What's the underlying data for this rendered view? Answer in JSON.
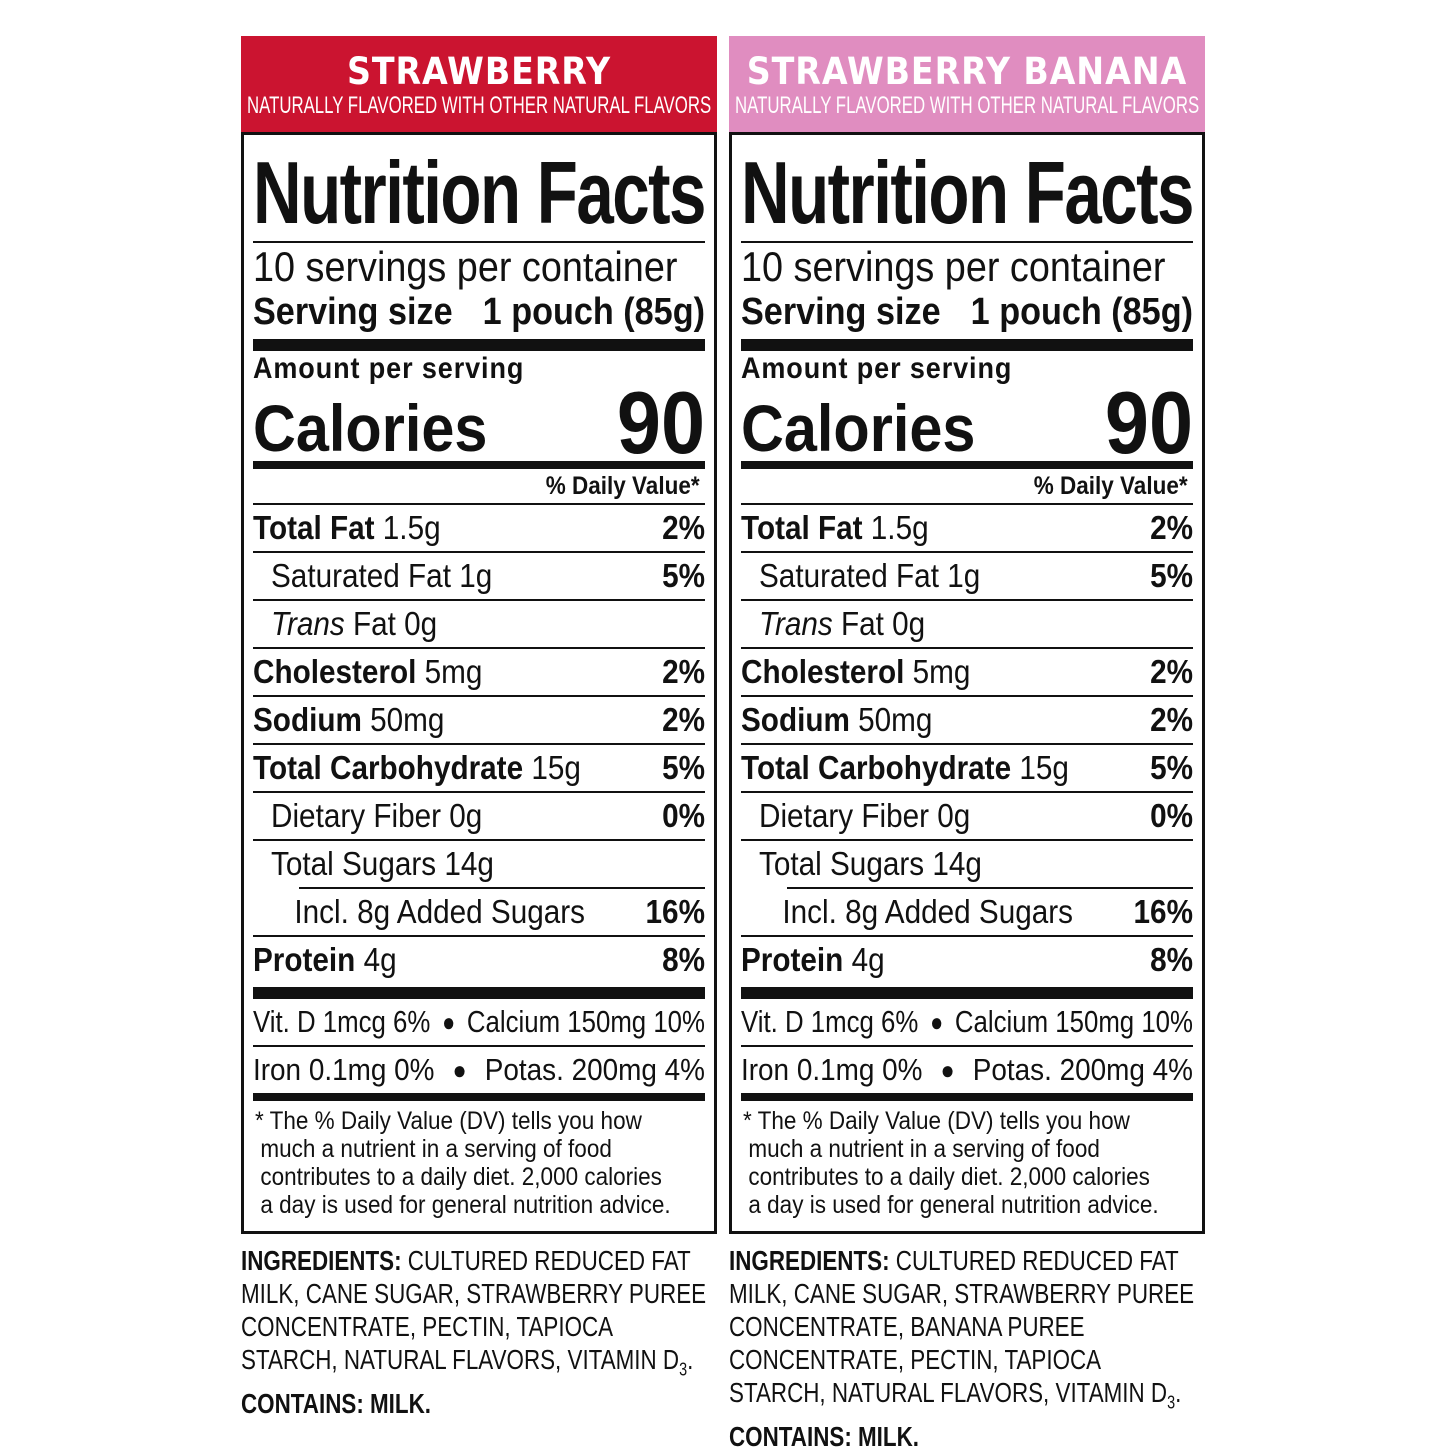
{
  "colors": {
    "strawberry": "#cb1430",
    "strawberry_banana": "#e08dc0"
  },
  "panels": [
    {
      "flavor": "STRAWBERRY",
      "subtitle": "NATURALLY FLAVORED WITH OTHER NATURAL FLAVORS",
      "color_key": "strawberry",
      "title": "Nutrition Facts",
      "servings": "10 servings per container",
      "serving_size_label": "Serving size",
      "serving_size_value": "1 pouch (85g)",
      "amount_per_serving": "Amount per serving",
      "calories_label": "Calories",
      "calories_value": "90",
      "dv_header": "% Daily Value*",
      "rows": [
        {
          "name": "Total Fat",
          "amount": " 1.5g",
          "dv": "2%",
          "bold": true,
          "indent": 0
        },
        {
          "name": "Saturated Fat 1g",
          "amount": "",
          "dv": "5%",
          "bold": false,
          "indent": 1
        },
        {
          "italic": "Trans",
          "name": " Fat 0g",
          "amount": "",
          "dv": "",
          "bold": false,
          "indent": 1
        },
        {
          "name": "Cholesterol",
          "amount": " 5mg",
          "dv": "2%",
          "bold": true,
          "indent": 0
        },
        {
          "name": "Sodium",
          "amount": " 50mg",
          "dv": "2%",
          "bold": true,
          "indent": 0
        },
        {
          "name": "Total Carbohydrate",
          "amount": " 15g",
          "dv": "5%",
          "bold": true,
          "indent": 0
        },
        {
          "name": "Dietary Fiber 0g",
          "amount": "",
          "dv": "0%",
          "bold": false,
          "indent": 1
        },
        {
          "name": "Total Sugars 14g",
          "amount": "",
          "dv": "",
          "bold": false,
          "indent": 1
        },
        {
          "name": "Incl. 8g Added Sugars",
          "amount": "",
          "dv": "16%",
          "bold": false,
          "indent": 2
        },
        {
          "name": "Protein",
          "amount": " 4g",
          "dv": "8%",
          "bold": true,
          "indent": 0
        }
      ],
      "vitamins": [
        {
          "left": "Vit. D 1mcg 6%",
          "right": "Calcium 150mg 10%"
        },
        {
          "left": "Iron 0.1mg 0%",
          "right": "Potas. 200mg 4%"
        }
      ],
      "footnote": [
        "* The % Daily Value (DV) tells you how",
        "much a nutrient in a serving of food",
        "contributes to a daily diet. 2,000 calories",
        "a day is used for general nutrition advice."
      ],
      "ingredients_label": "INGREDIENTS:",
      "ingredients_text": " CULTURED REDUCED FAT MILK, CANE SUGAR, STRAWBERRY PUREE CONCENTRATE, PECTIN, TAPIOCA STARCH, NATURAL FLAVORS, VITAMIN D",
      "ingredients_sub": "3",
      "ingredients_end": ".",
      "contains": "CONTAINS: MILK."
    },
    {
      "flavor": "STRAWBERRY BANANA",
      "subtitle": "NATURALLY FLAVORED WITH OTHER NATURAL FLAVORS",
      "color_key": "strawberry_banana",
      "title": "Nutrition Facts",
      "servings": "10 servings per container",
      "serving_size_label": "Serving size",
      "serving_size_value": "1 pouch (85g)",
      "amount_per_serving": "Amount per serving",
      "calories_label": "Calories",
      "calories_value": "90",
      "dv_header": "% Daily Value*",
      "rows": [
        {
          "name": "Total Fat",
          "amount": " 1.5g",
          "dv": "2%",
          "bold": true,
          "indent": 0
        },
        {
          "name": "Saturated Fat 1g",
          "amount": "",
          "dv": "5%",
          "bold": false,
          "indent": 1
        },
        {
          "italic": "Trans",
          "name": " Fat 0g",
          "amount": "",
          "dv": "",
          "bold": false,
          "indent": 1
        },
        {
          "name": "Cholesterol",
          "amount": " 5mg",
          "dv": "2%",
          "bold": true,
          "indent": 0
        },
        {
          "name": "Sodium",
          "amount": " 50mg",
          "dv": "2%",
          "bold": true,
          "indent": 0
        },
        {
          "name": "Total Carbohydrate",
          "amount": " 15g",
          "dv": "5%",
          "bold": true,
          "indent": 0
        },
        {
          "name": "Dietary Fiber 0g",
          "amount": "",
          "dv": "0%",
          "bold": false,
          "indent": 1
        },
        {
          "name": "Total Sugars 14g",
          "amount": "",
          "dv": "",
          "bold": false,
          "indent": 1
        },
        {
          "name": "Incl. 8g Added Sugars",
          "amount": "",
          "dv": "16%",
          "bold": false,
          "indent": 2
        },
        {
          "name": "Protein",
          "amount": " 4g",
          "dv": "8%",
          "bold": true,
          "indent": 0
        }
      ],
      "vitamins": [
        {
          "left": "Vit. D 1mcg 6%",
          "right": "Calcium 150mg 10%"
        },
        {
          "left": "Iron 0.1mg 0%",
          "right": "Potas. 200mg 4%"
        }
      ],
      "footnote": [
        "* The % Daily Value (DV) tells you how",
        "much a nutrient in a serving of food",
        "contributes to a daily diet. 2,000 calories",
        "a day is used for general nutrition advice."
      ],
      "ingredients_label": "INGREDIENTS:",
      "ingredients_text": " CULTURED REDUCED FAT MILK, CANE SUGAR, STRAWBERRY PUREE CONCENTRATE, BANANA PUREE CONCENTRATE, PECTIN, TAPIOCA STARCH, NATURAL FLAVORS, VITAMIN D",
      "ingredients_sub": "3",
      "ingredients_end": ".",
      "contains": "CONTAINS: MILK."
    }
  ]
}
